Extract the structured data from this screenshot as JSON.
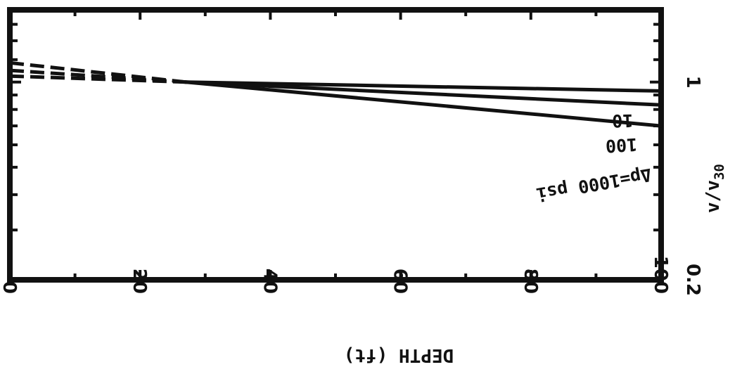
{
  "chart_data": {
    "type": "line",
    "xlabel": "DEPTH (ft)",
    "ylabel": "v/v",
    "ylabel_sub": "30",
    "x_ticks": [
      "0",
      "20",
      "40",
      "60",
      "80",
      "100"
    ],
    "y_ticks": [
      "0.2",
      "1"
    ],
    "xlim": [
      0,
      100
    ],
    "ylim": [
      0.2,
      1.8
    ],
    "y_scale": "log",
    "grid": false,
    "series": [
      {
        "name": "10",
        "label": "10",
        "values": [
          [
            27,
            1.0
          ],
          [
            100,
            0.93
          ]
        ],
        "extrapolated": [
          [
            0,
            1.05
          ],
          [
            27,
            1.0
          ]
        ]
      },
      {
        "name": "100",
        "label": "100",
        "values": [
          [
            27,
            1.0
          ],
          [
            100,
            0.83
          ]
        ],
        "extrapolated": [
          [
            0,
            1.1
          ],
          [
            27,
            1.0
          ]
        ]
      },
      {
        "name": "Δp=1000 psi",
        "label": "Δp=1000 psi",
        "values": [
          [
            27,
            1.0
          ],
          [
            100,
            0.7
          ]
        ],
        "extrapolated": [
          [
            0,
            1.17
          ],
          [
            27,
            1.0
          ]
        ]
      }
    ]
  }
}
